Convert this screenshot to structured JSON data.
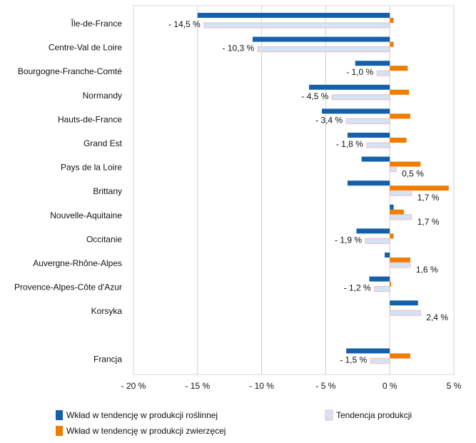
{
  "chart_data": {
    "type": "bar",
    "orientation": "horizontal",
    "categories": [
      "Île-de-France",
      "Centre-Val de Loire",
      "Bourgogne-Franche-Comté",
      "Normandy",
      "Hauts-de-France",
      "Grand Est",
      "Pays de la Loire",
      "Brittany",
      "Nouvelle-Aquitaine",
      "Occitanie",
      "Auvergne-Rhône-Alpes",
      "Provence-Alpes-Côte d'Azur",
      "Korsyka",
      "",
      "Francja"
    ],
    "series": [
      {
        "name": "Wkład w tendencję w produkcji roślinnej",
        "color": "#1560a8",
        "values": [
          -15.0,
          -10.7,
          -2.7,
          -6.3,
          -5.3,
          -3.3,
          -2.2,
          -3.3,
          0.3,
          -2.6,
          -0.4,
          -1.6,
          2.2,
          null,
          -3.4
        ]
      },
      {
        "name": "Wkład w tendencję w produkcji zwierzęcej",
        "color": "#f07c00",
        "values": [
          0.3,
          0.3,
          1.4,
          1.5,
          1.6,
          1.3,
          2.4,
          4.6,
          1.1,
          0.3,
          1.6,
          0.1,
          0.0,
          null,
          1.6
        ]
      },
      {
        "name": "Tendencja produkcji",
        "color": "#d3e4f5",
        "border": "#f0b8c0",
        "values": [
          -14.5,
          -10.3,
          -1.0,
          -4.5,
          -3.4,
          -1.8,
          0.5,
          1.7,
          1.7,
          -1.9,
          1.6,
          -1.2,
          2.4,
          null,
          -1.5
        ]
      }
    ],
    "data_labels": [
      "- 14,5 %",
      "- 10,3 %",
      "- 1,0 %",
      "- 4,5 %",
      "- 3,4 %",
      "- 1,8 %",
      "0,5 %",
      "1,7 %",
      "1,7 %",
      "- 1,9 %",
      "1,6 %",
      "- 1,2 %",
      "2,4 %",
      "",
      "- 1,5 %"
    ],
    "xlim": [
      -20,
      5
    ],
    "xticks": [
      -20,
      -15,
      -10,
      -5,
      0,
      5
    ],
    "xtick_labels": [
      "- 20 %",
      "- 15 %",
      "- 10 %",
      "- 5 %",
      "0 %",
      "5 %"
    ],
    "grid": "vertical",
    "legend_position": "bottom"
  }
}
